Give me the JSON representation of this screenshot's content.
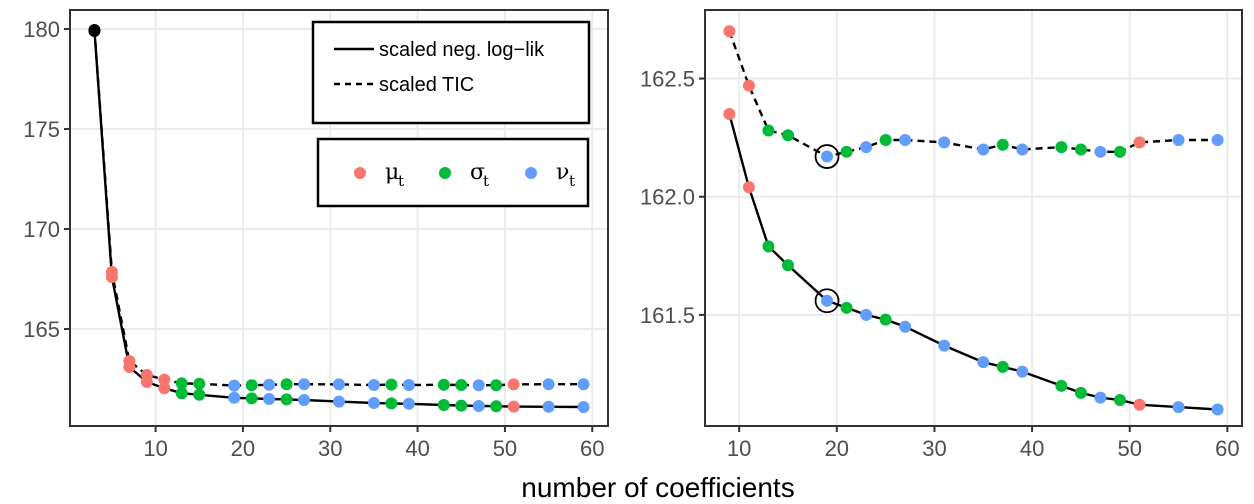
{
  "chart_data": [
    {
      "type": "line",
      "panel": "left",
      "title": "",
      "xlabel": "number of coefficients",
      "ylabel": "",
      "xlim": [
        0.2,
        61.8
      ],
      "ylim": [
        160.15,
        180.95
      ],
      "grid": true,
      "xticks": [
        10,
        20,
        30,
        40,
        50,
        60
      ],
      "xtick_labels": [
        "10",
        "20",
        "30",
        "40",
        "50",
        "60"
      ],
      "yticks": [
        165,
        170,
        175,
        180
      ],
      "ytick_labels": [
        "165",
        "170",
        "175",
        "180"
      ],
      "legend_placement": "top-right",
      "line_legend": [
        {
          "name": "scaled neg. log−lik",
          "style": "solid"
        },
        {
          "name": "scaled TIC",
          "style": "dashed"
        }
      ],
      "color_legend": [
        {
          "symbol": "μ",
          "sub": "t",
          "color": "#F8766D"
        },
        {
          "symbol": "σ",
          "sub": "t",
          "color": "#00BA38"
        },
        {
          "symbol": "ν",
          "sub": "t",
          "color": "#619CFF"
        }
      ],
      "series": [
        {
          "name": "scaled neg. log−lik",
          "style": "solid",
          "x": [
            3,
            5,
            7,
            9,
            11,
            13,
            15,
            19,
            21,
            23,
            25,
            27,
            31,
            35,
            37,
            39,
            43,
            45,
            47,
            49,
            51,
            55,
            59
          ],
          "y": [
            179.9,
            167.6,
            163.1,
            162.35,
            162.04,
            161.79,
            161.71,
            161.56,
            161.53,
            161.5,
            161.48,
            161.45,
            161.37,
            161.3,
            161.28,
            161.26,
            161.2,
            161.17,
            161.15,
            161.14,
            161.12,
            161.11,
            161.1
          ],
          "groups": [
            "start",
            "mu",
            "mu",
            "mu",
            "mu",
            "sigma",
            "sigma",
            "nu",
            "sigma",
            "nu",
            "sigma",
            "nu",
            "nu",
            "nu",
            "sigma",
            "nu",
            "sigma",
            "sigma",
            "nu",
            "sigma",
            "mu",
            "nu",
            "nu"
          ]
        },
        {
          "name": "scaled TIC",
          "style": "dashed",
          "x": [
            3,
            5,
            7,
            9,
            11,
            13,
            15,
            19,
            21,
            23,
            25,
            27,
            31,
            35,
            37,
            39,
            43,
            45,
            47,
            49,
            51,
            55,
            59
          ],
          "y": [
            179.95,
            167.85,
            163.4,
            162.7,
            162.47,
            162.28,
            162.26,
            162.17,
            162.19,
            162.21,
            162.24,
            162.24,
            162.23,
            162.2,
            162.22,
            162.2,
            162.21,
            162.2,
            162.19,
            162.19,
            162.23,
            162.24,
            162.24
          ],
          "groups": [
            "start",
            "mu",
            "mu",
            "mu",
            "mu",
            "sigma",
            "sigma",
            "nu",
            "sigma",
            "nu",
            "sigma",
            "nu",
            "nu",
            "nu",
            "sigma",
            "nu",
            "sigma",
            "sigma",
            "nu",
            "sigma",
            "mu",
            "nu",
            "nu"
          ]
        }
      ]
    },
    {
      "type": "line",
      "panel": "right",
      "title": "",
      "xlabel": "number of coefficients",
      "ylabel": "",
      "xlim": [
        6.5,
        61.5
      ],
      "ylim": [
        161.03,
        162.79
      ],
      "grid": true,
      "xticks": [
        10,
        20,
        30,
        40,
        50,
        60
      ],
      "xtick_labels": [
        "10",
        "20",
        "30",
        "40",
        "50",
        "60"
      ],
      "yticks": [
        161.5,
        162.0,
        162.5
      ],
      "ytick_labels": [
        "161.5",
        "162.0",
        "162.5"
      ],
      "highlighted_points": [
        {
          "series": "scaled TIC",
          "x": 19,
          "y": 162.17
        },
        {
          "series": "scaled neg. log−lik",
          "x": 19,
          "y": 161.56
        }
      ],
      "series": [
        {
          "name": "scaled neg. log−lik",
          "style": "solid",
          "x": [
            9,
            11,
            13,
            15,
            19,
            21,
            23,
            25,
            27,
            31,
            35,
            37,
            39,
            43,
            45,
            47,
            49,
            51,
            55,
            59
          ],
          "y": [
            162.35,
            162.04,
            161.79,
            161.71,
            161.56,
            161.53,
            161.5,
            161.48,
            161.45,
            161.37,
            161.3,
            161.28,
            161.26,
            161.2,
            161.17,
            161.15,
            161.14,
            161.12,
            161.11,
            161.1
          ],
          "groups": [
            "mu",
            "mu",
            "sigma",
            "sigma",
            "nu",
            "sigma",
            "nu",
            "sigma",
            "nu",
            "nu",
            "nu",
            "sigma",
            "nu",
            "sigma",
            "sigma",
            "nu",
            "sigma",
            "mu",
            "nu",
            "nu"
          ]
        },
        {
          "name": "scaled TIC",
          "style": "dashed",
          "x": [
            9,
            11,
            13,
            15,
            19,
            21,
            23,
            25,
            27,
            31,
            35,
            37,
            39,
            43,
            45,
            47,
            49,
            51,
            55,
            59
          ],
          "y": [
            162.7,
            162.47,
            162.28,
            162.26,
            162.17,
            162.19,
            162.21,
            162.24,
            162.24,
            162.23,
            162.2,
            162.22,
            162.2,
            162.21,
            162.2,
            162.19,
            162.19,
            162.23,
            162.24,
            162.24
          ],
          "groups": [
            "mu",
            "mu",
            "sigma",
            "sigma",
            "nu",
            "sigma",
            "nu",
            "sigma",
            "nu",
            "nu",
            "nu",
            "sigma",
            "nu",
            "sigma",
            "sigma",
            "nu",
            "sigma",
            "mu",
            "nu",
            "nu"
          ]
        }
      ]
    }
  ],
  "group_colors": {
    "start": "#000000",
    "mu": "#F8766D",
    "sigma": "#00BA38",
    "nu": "#619CFF"
  },
  "shared_xlabel": "number of coefficients"
}
